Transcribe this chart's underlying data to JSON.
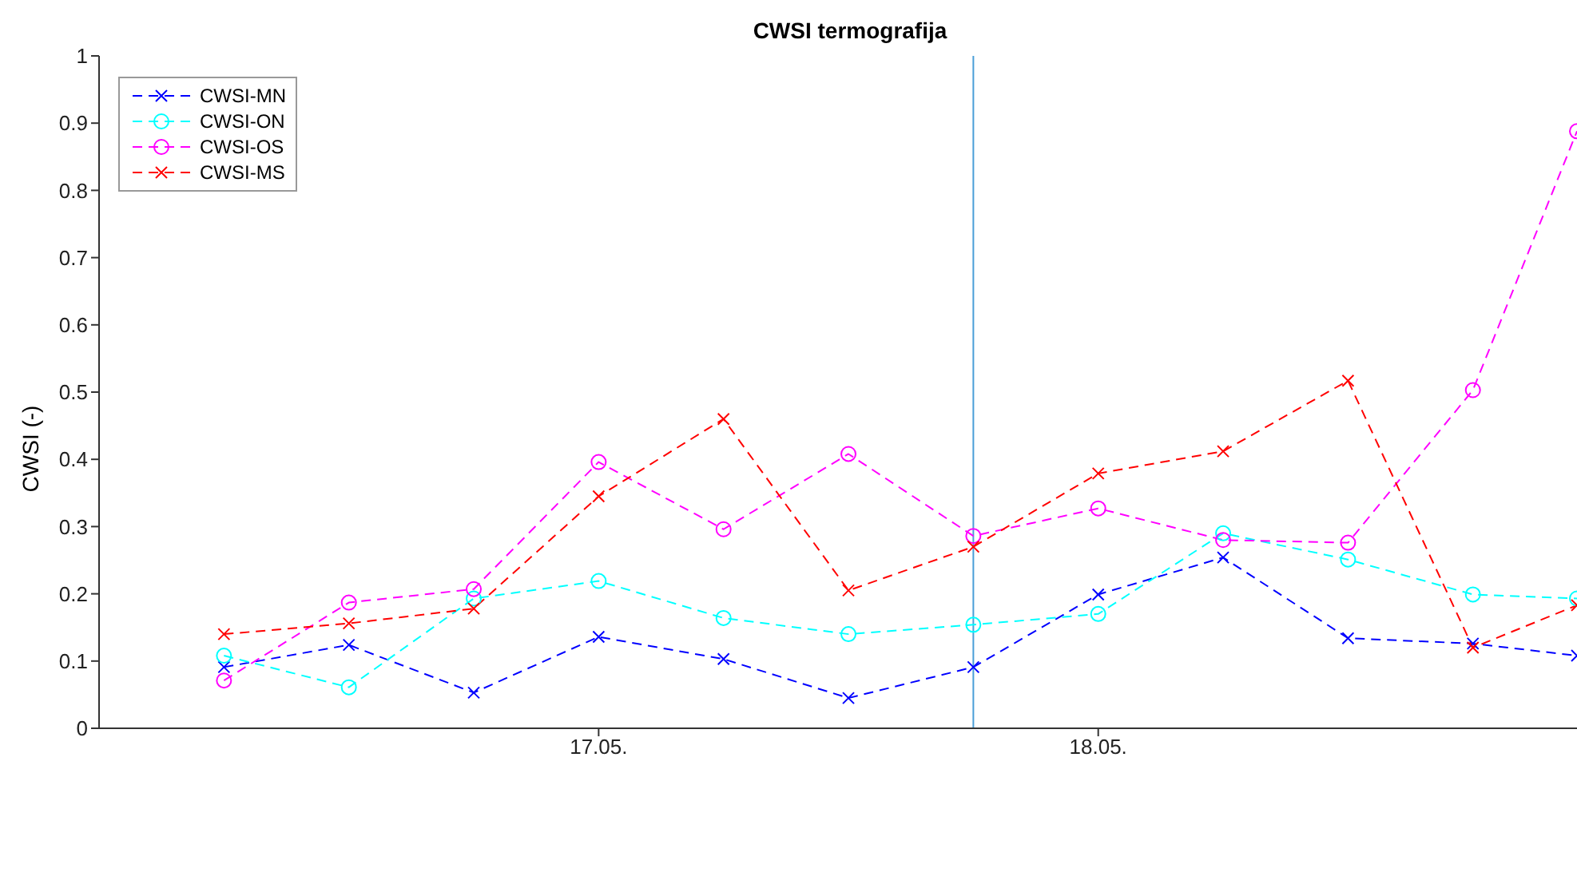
{
  "chart_data": {
    "type": "line",
    "title": "CWSI termografija",
    "ylabel": "CWSI (-)",
    "x": [
      "--05-16T06:00",
      "--05-16T12:00",
      "--05-16T18:00",
      "--05-17T00:00",
      "--05-17T06:00",
      "--05-17T12:00",
      "--05-17T18:00",
      "--05-18T00:00",
      "--05-18T06:00",
      "--05-18T12:00",
      "--05-18T18:00",
      "--05-18T23:00"
    ],
    "xlim": [
      "--05-16T00:00",
      "--05-18T23:00"
    ],
    "xticks": [
      {
        "value": "--05-17",
        "label": "17.05."
      },
      {
        "value": "--05-18",
        "label": "18.05."
      }
    ],
    "ylim": [
      0,
      1
    ],
    "yticks": [
      0,
      0.1,
      0.2,
      0.3,
      0.4,
      0.5,
      0.6,
      0.7,
      0.8,
      0.9,
      1
    ],
    "grid": false,
    "legend": "top left",
    "line_style": "dashed",
    "series": [
      {
        "name": "CWSI-MN",
        "color": "#0000ff",
        "marker": "cross",
        "values": [
          0.091,
          0.124,
          0.053,
          0.136,
          0.103,
          0.045,
          0.091,
          0.199,
          0.254,
          0.134,
          0.126,
          0.108
        ]
      },
      {
        "name": "CWSI-ON",
        "color": "#00ffff",
        "marker": "circle",
        "values": [
          0.108,
          0.061,
          0.193,
          0.219,
          0.164,
          0.14,
          0.154,
          0.17,
          0.29,
          0.251,
          0.199,
          0.193
        ]
      },
      {
        "name": "CWSI-OS",
        "color": "#ff00ff",
        "marker": "circle",
        "values": [
          0.071,
          0.187,
          0.207,
          0.396,
          0.296,
          0.408,
          0.286,
          0.327,
          0.28,
          0.276,
          0.503,
          0.888
        ]
      },
      {
        "name": "CWSI-MS",
        "color": "#ff0000",
        "marker": "cross",
        "values": [
          0.14,
          0.156,
          0.178,
          0.345,
          0.46,
          0.205,
          0.27,
          0.379,
          0.412,
          0.517,
          0.12,
          0.183
        ]
      }
    ],
    "ref_lines": [
      {
        "axis": "x",
        "value": "--05-17T18:00",
        "color": "#4a9fd8",
        "line_style": "solid"
      }
    ]
  }
}
